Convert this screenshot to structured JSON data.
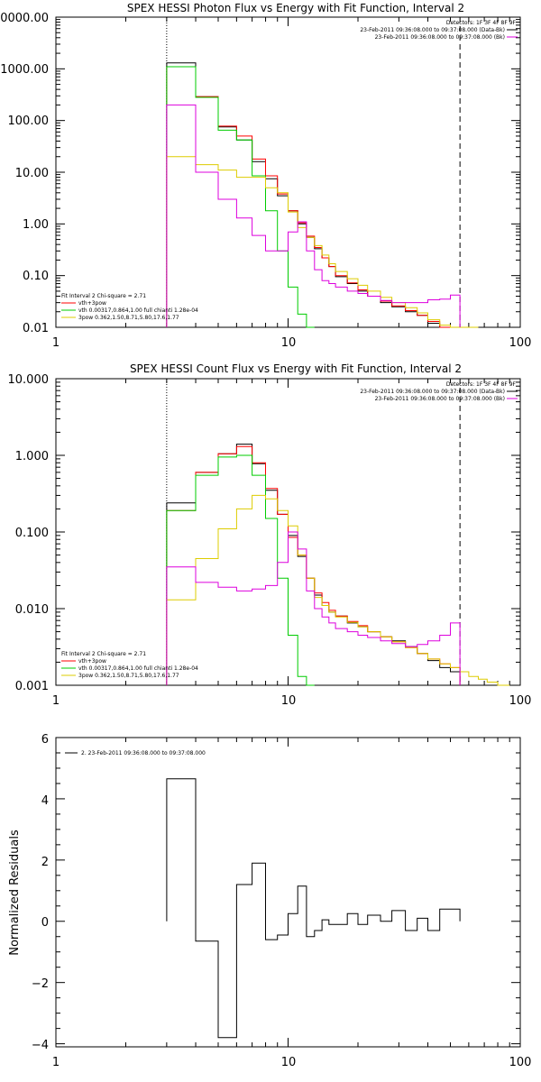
{
  "chart_data": [
    {
      "type": "line",
      "title": "SPEX HESSI Photon Flux vs Energy with Fit Function, Interval 2",
      "xlabel": "",
      "ylabel": "",
      "x_scale": "log",
      "y_scale": "log",
      "xlim": [
        1,
        100
      ],
      "ylim": [
        0.01,
        10000
      ],
      "x_ticks": [
        "1",
        "10",
        "100"
      ],
      "y_ticks": [
        "0.01",
        "0.10",
        "1.00",
        "10.00",
        "100.00",
        "1000.00",
        "10000.00"
      ],
      "vlines": {
        "dotted": 3,
        "dashed": 55
      },
      "header_text": [
        "Detectors: 1F 3F 4F 8F 9F",
        "23-Feb-2011 09:36:08.000 to 09:37:08.000 (Data-Bk)",
        "23-Feb-2011 09:36:08.000 to 09:37:08.000 (Bk)"
      ],
      "legend_text": [
        "Fit Interval 2   Chi-square = 2.71",
        "vth+3pow",
        "vth 0.00317,0.864,1.00  full chianti 1.28e-04",
        "3pow 0.362,1.50,8.71,5.80,17.6,1.77"
      ],
      "edges": [
        3,
        4,
        5,
        6,
        7,
        8,
        9,
        10,
        11,
        12,
        13,
        14,
        15,
        16,
        18,
        20,
        22,
        25,
        28,
        32,
        36,
        40,
        45,
        50,
        55,
        60,
        66
      ],
      "series": [
        {
          "name": "23-Feb-2011 09:36:08.000 to 09:37:08.000 (Data-Bk)",
          "color": "#000000",
          "values": [
            1300,
            290,
            75,
            42,
            16,
            7.5,
            3.5,
            1.8,
            1.0,
            0.55,
            0.33,
            0.22,
            0.15,
            0.095,
            0.07,
            0.05,
            0.04,
            0.03,
            0.025,
            0.02,
            0.017,
            0.012,
            0.008,
            0.006,
            null,
            null
          ]
        },
        {
          "name": "vth+3pow",
          "color": "#ff0000",
          "values": [
            1100,
            290,
            78,
            50,
            18,
            8.5,
            3.8,
            1.8,
            1.05,
            0.58,
            0.35,
            0.22,
            0.15,
            0.1,
            0.072,
            0.053,
            0.04,
            0.032,
            0.026,
            0.021,
            0.017,
            0.013,
            0.01,
            0.008,
            null,
            null
          ]
        },
        {
          "name": "vth 0.00317,0.864,1.00  full chianti 1.28e-04",
          "color": "#00cc00",
          "values": [
            1100,
            280,
            65,
            42,
            8.5,
            1.8,
            0.3,
            0.06,
            0.018,
            0.01,
            null,
            null,
            null,
            null,
            null,
            null,
            null,
            null,
            null,
            null,
            null,
            null,
            null,
            null,
            null,
            null
          ]
        },
        {
          "name": "3pow 0.362,1.50,8.71,5.80,17.6,1.77",
          "color": "#ddcc00",
          "values": [
            20,
            14,
            11,
            8,
            8,
            5,
            4,
            1.7,
            0.85,
            0.55,
            0.38,
            0.25,
            0.17,
            0.12,
            0.087,
            0.065,
            0.05,
            0.038,
            0.03,
            0.024,
            0.019,
            0.014,
            0.011,
            0.01,
            0.008,
            0.006
          ]
        },
        {
          "name": "23-Feb-2011 09:36:08.000 to 09:37:08.000 (Bk)",
          "color": "#dd00dd",
          "values": [
            200,
            10,
            3,
            1.3,
            0.6,
            0.3,
            0.3,
            0.7,
            1.1,
            0.3,
            0.13,
            0.08,
            0.07,
            0.06,
            0.05,
            0.045,
            0.04,
            0.033,
            0.03,
            0.03,
            0.03,
            0.034,
            0.035,
            0.042,
            null,
            null
          ]
        }
      ]
    },
    {
      "type": "line",
      "title": "SPEX HESSI Count Flux vs Energy with Fit Function, Interval 2",
      "xlabel": "",
      "ylabel": "",
      "x_scale": "log",
      "y_scale": "log",
      "xlim": [
        1,
        100
      ],
      "ylim": [
        0.001,
        10
      ],
      "x_ticks": [
        "1",
        "10",
        "100"
      ],
      "y_ticks": [
        "0.001",
        "0.010",
        "0.100",
        "1.000",
        "10.000"
      ],
      "vlines": {
        "dotted": 3,
        "dashed": 55
      },
      "header_text": [
        "Detectors: 1F 3F 4F 8F 9F",
        "23-Feb-2011 09:36:08.000 to 09:37:08.000 (Data-Bk)",
        "23-Feb-2011 09:36:08.000 to 09:37:08.000 (Bk)"
      ],
      "legend_text": [
        "Fit Interval 2   Chi-square = 2.71",
        "vth+3pow",
        "vth 0.00317,0.864,1.00  full chianti 1.28e-04",
        "3pow 0.362,1.50,8.71,5.80,17.6,1.77"
      ],
      "edges": [
        3,
        4,
        5,
        6,
        7,
        8,
        9,
        10,
        11,
        12,
        13,
        14,
        15,
        16,
        18,
        20,
        22,
        25,
        28,
        32,
        36,
        40,
        45,
        50,
        55,
        60,
        66,
        72,
        80,
        90
      ],
      "series": [
        {
          "name": "23-Feb-2011 09:36:08.000 to 09:37:08.000 (Data-Bk)",
          "color": "#000000",
          "values": [
            0.24,
            0.6,
            1.05,
            1.4,
            0.78,
            0.35,
            0.17,
            0.09,
            0.048,
            0.025,
            0.015,
            0.011,
            0.009,
            0.008,
            0.0065,
            0.0058,
            0.005,
            0.0043,
            0.0038,
            0.0032,
            0.0026,
            0.0021,
            0.0017,
            0.0015,
            null,
            null,
            null,
            null,
            null
          ]
        },
        {
          "name": "vth+3pow",
          "color": "#ff0000",
          "values": [
            0.19,
            0.6,
            1.05,
            1.3,
            0.8,
            0.37,
            0.17,
            0.085,
            0.05,
            0.025,
            0.016,
            0.012,
            0.0095,
            0.008,
            0.0068,
            0.006,
            0.005,
            0.0043,
            0.0037,
            0.0031,
            0.0026,
            0.0022,
            0.0019,
            0.0017,
            null,
            null,
            null,
            null,
            null
          ]
        },
        {
          "name": "vth 0.00317,0.864,1.00  full chianti 1.28e-04",
          "color": "#00cc00",
          "values": [
            0.19,
            0.55,
            0.95,
            1.0,
            0.55,
            0.15,
            0.025,
            0.0045,
            0.0013,
            0.001,
            null,
            null,
            null,
            null,
            null,
            null,
            null,
            null,
            null,
            null,
            null,
            null,
            null,
            null,
            null,
            null,
            null,
            null,
            null
          ]
        },
        {
          "name": "3pow 0.362,1.50,8.71,5.80,17.6,1.77",
          "color": "#ddcc00",
          "values": [
            0.013,
            0.045,
            0.11,
            0.2,
            0.3,
            0.27,
            0.19,
            0.12,
            0.05,
            0.025,
            0.014,
            0.011,
            0.009,
            0.0078,
            0.0066,
            0.0058,
            0.005,
            0.0043,
            0.0037,
            0.0031,
            0.0026,
            0.0022,
            0.0019,
            0.0017,
            0.0015,
            0.0013,
            0.0012,
            0.0011,
            0.001
          ]
        },
        {
          "name": "23-Feb-2011 09:36:08.000 to 09:37:08.000 (Bk)",
          "color": "#dd00dd",
          "values": [
            0.035,
            0.022,
            0.019,
            0.017,
            0.018,
            0.02,
            0.04,
            0.1,
            0.06,
            0.017,
            0.01,
            0.0078,
            0.0065,
            0.0055,
            0.005,
            0.0045,
            0.0042,
            0.0038,
            0.0035,
            0.0032,
            0.0034,
            0.0038,
            0.0045,
            0.0065,
            null,
            null,
            null,
            null,
            null
          ]
        }
      ]
    },
    {
      "type": "line",
      "title": "",
      "xlabel": "",
      "ylabel": "Normalized Residuals",
      "x_scale": "log",
      "y_scale": "linear",
      "xlim": [
        1,
        100
      ],
      "ylim": [
        -4.1,
        6
      ],
      "x_ticks": [
        "1",
        "10",
        "100"
      ],
      "y_ticks": [
        "−4",
        "−2",
        "0",
        "2",
        "4",
        "6"
      ],
      "y_tick_values": [
        -4,
        -2,
        0,
        2,
        4,
        6
      ],
      "legend_text": [
        "2.  23-Feb-2011 09:36:08.000 to 09:37:08.000"
      ],
      "edges": [
        3,
        4,
        5,
        6,
        7,
        8,
        9,
        10,
        11,
        12,
        13,
        14,
        15,
        16,
        18,
        20,
        22,
        25,
        28,
        32,
        36,
        40,
        45,
        50,
        55
      ],
      "series": [
        {
          "name": "2.  23-Feb-2011 09:36:08.000 to 09:37:08.000",
          "color": "#000000",
          "values": [
            4.65,
            -0.65,
            -3.8,
            1.2,
            1.9,
            -0.6,
            -0.45,
            0.25,
            1.15,
            -0.5,
            -0.3,
            0.05,
            -0.1,
            -0.1,
            0.25,
            -0.1,
            0.2,
            0.0,
            0.35,
            -0.3,
            0.1,
            -0.3,
            0.4,
            0.4
          ]
        }
      ]
    }
  ]
}
